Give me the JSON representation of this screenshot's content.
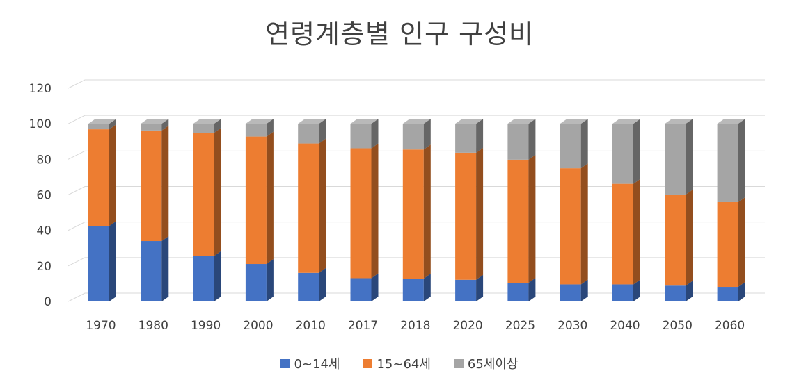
{
  "chart_data": {
    "type": "bar",
    "stacked": true,
    "three_d": true,
    "title": "연령계층별 인구 구성비",
    "categories": [
      "1970",
      "1980",
      "1990",
      "2000",
      "2010",
      "2017",
      "2018",
      "2020",
      "2025",
      "2030",
      "2040",
      "2050",
      "2060"
    ],
    "series": [
      {
        "name": "0~14세",
        "color": "#4472C4",
        "values": [
          42.5,
          34.0,
          25.6,
          21.1,
          16.1,
          13.1,
          12.9,
          12.2,
          10.5,
          9.6,
          9.6,
          8.9,
          8.2
        ]
      },
      {
        "name": "15~64세",
        "color": "#ED7D31",
        "values": [
          54.4,
          62.2,
          69.3,
          71.7,
          72.8,
          73.1,
          72.6,
          71.5,
          69.3,
          65.4,
          56.6,
          51.3,
          47.7
        ]
      },
      {
        "name": "65세이상",
        "color": "#A5A5A5",
        "values": [
          3.1,
          3.8,
          5.1,
          7.2,
          11.1,
          13.8,
          14.5,
          16.3,
          20.2,
          25.0,
          33.8,
          39.8,
          44.1
        ]
      }
    ],
    "ylim": [
      0,
      120
    ],
    "yticks": [
      0,
      20,
      40,
      60,
      80,
      100,
      120
    ],
    "grid": true,
    "legend_position": "bottom"
  }
}
